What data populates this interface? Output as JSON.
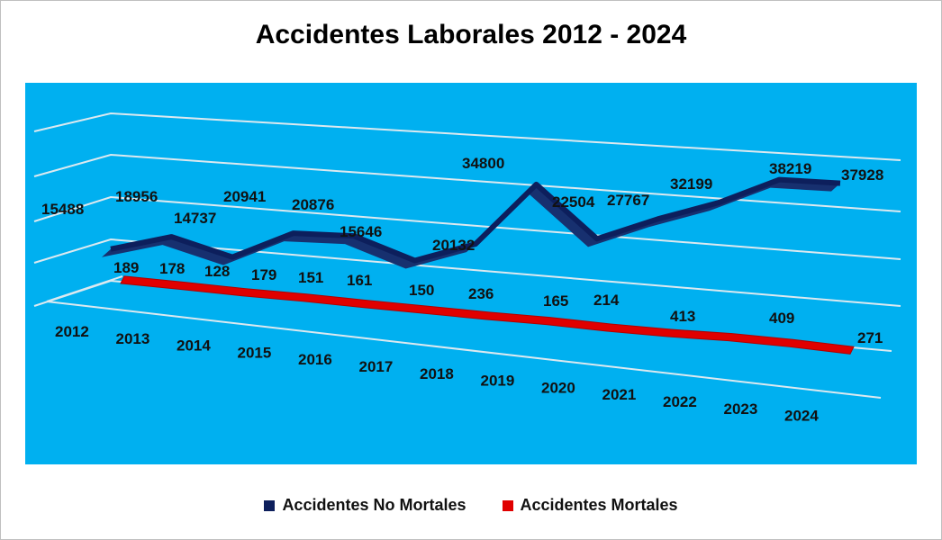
{
  "chart_data": {
    "type": "line",
    "title": "Accidentes Laborales 2012 - 2024",
    "categories": [
      "2012",
      "2013",
      "2014",
      "2015",
      "2016",
      "2017",
      "2018",
      "2019",
      "2020",
      "2021",
      "2022",
      "2023",
      "2024"
    ],
    "series": [
      {
        "name": "Accidentes No Mortales",
        "color": "#0d1f5c",
        "values": [
          15488,
          18956,
          14737,
          20941,
          20876,
          15646,
          20132,
          34800,
          22504,
          27767,
          32199,
          38219,
          37928
        ]
      },
      {
        "name": "Accidentes Mortales",
        "color": "#e00000",
        "values": [
          189,
          178,
          128,
          179,
          151,
          161,
          150,
          236,
          165,
          214,
          413,
          409,
          271
        ]
      }
    ],
    "grid": true,
    "legend": "bottom",
    "plot_background": "#00b0f0"
  }
}
